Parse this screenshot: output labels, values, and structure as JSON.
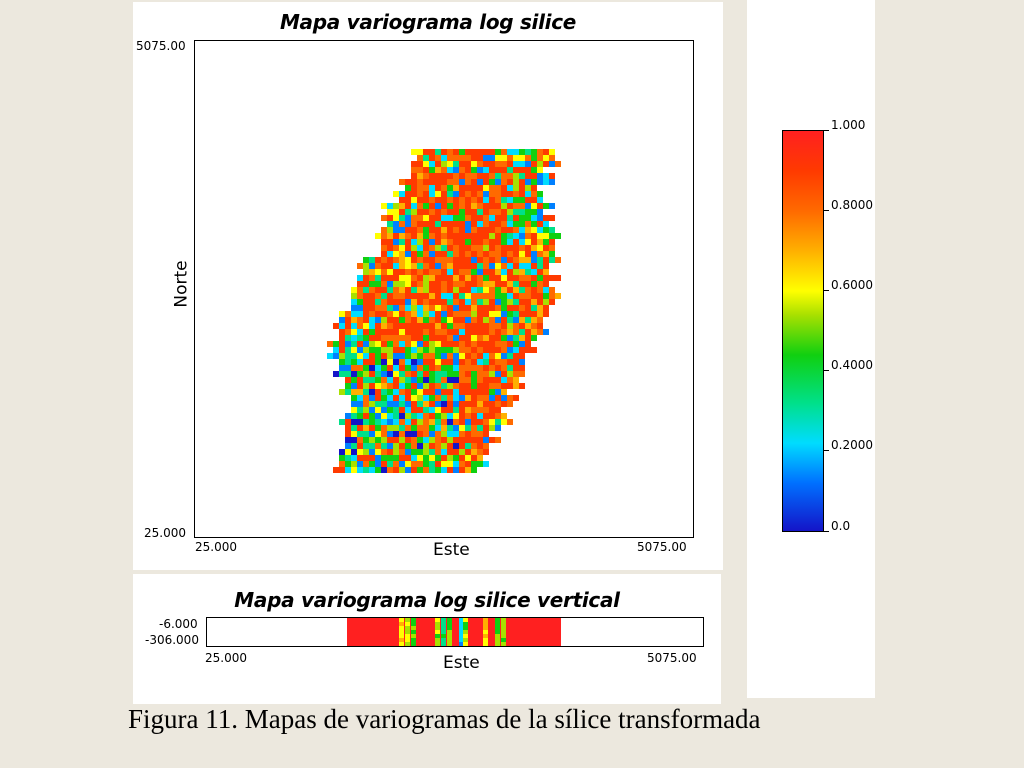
{
  "main_map": {
    "title": "Mapa variograma log silice",
    "xlabel": "Este",
    "ylabel": "Norte",
    "x_min_label": "25.000",
    "x_max_label": "5075.00",
    "y_min_label": "25.000",
    "y_max_label": "5075.00"
  },
  "vertical_map": {
    "title": "Mapa variograma log silice vertical",
    "xlabel": "Este",
    "x_min_label": "25.000",
    "x_max_label": "5075.00",
    "y_top_label": "-6.000",
    "y_bottom_label": "-306.000"
  },
  "legend": {
    "labels": [
      "1.000",
      "0.8000",
      "0.6000",
      "0.4000",
      "0.2000",
      "0.0"
    ],
    "colormap": "rainbow",
    "min_color": "#1414c8",
    "max_color": "#ff2020"
  },
  "caption": "Figura 11. Mapas de variogramas de la sílice transformada"
}
